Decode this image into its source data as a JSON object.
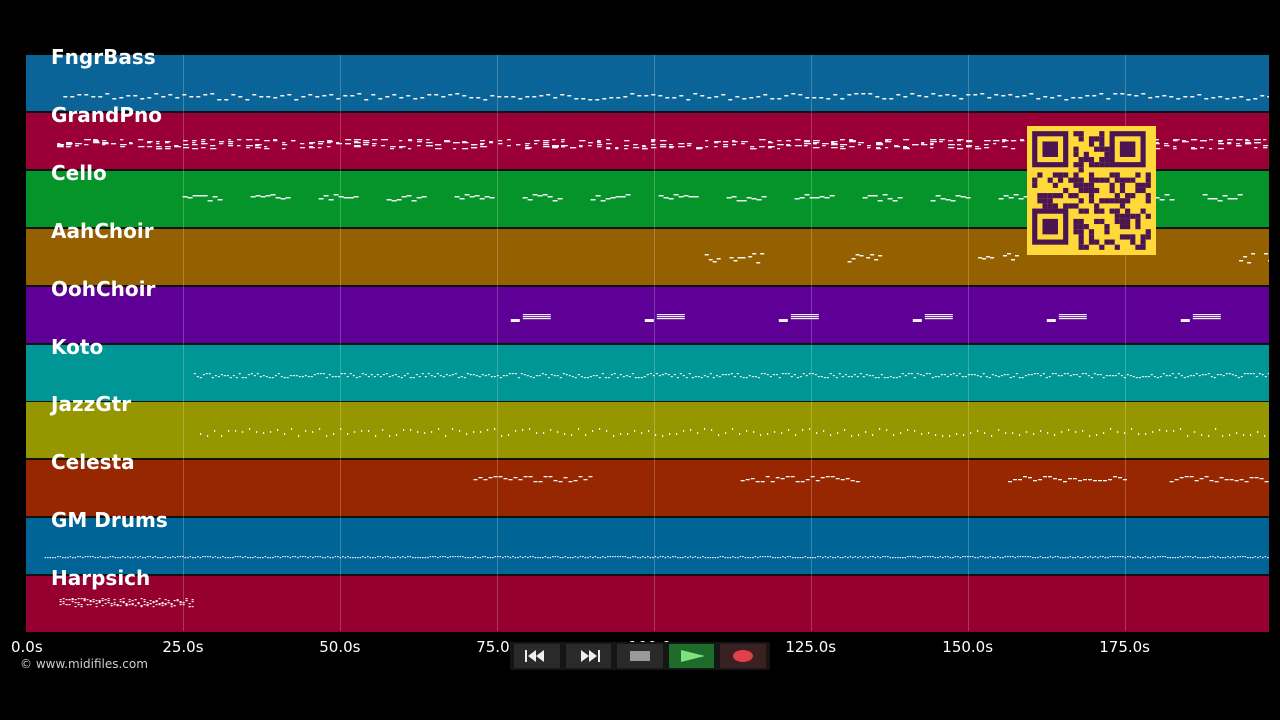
{
  "tracks": [
    {
      "name": "FngrBass",
      "color": "#0a6497",
      "pattern": "wave",
      "start": 0.03,
      "end": 1.0
    },
    {
      "name": "GrandPno",
      "color": "#9a0035",
      "pattern": "chords",
      "start": 0.025,
      "end": 1.0
    },
    {
      "name": "Cello",
      "color": "#05942a",
      "pattern": "phrases",
      "start": 0.126,
      "end": 1.0
    },
    {
      "name": "AahChoir",
      "color": "#956000",
      "pattern": "sparse",
      "start": 0.55,
      "end": 1.0
    },
    {
      "name": "OohChoir",
      "color": "#5e0096",
      "pattern": "blocks",
      "start": 0.39,
      "end": 1.0
    },
    {
      "name": "Koto",
      "color": "#009696",
      "pattern": "dense",
      "start": 0.135,
      "end": 1.0
    },
    {
      "name": "JazzGtr",
      "color": "#969600",
      "pattern": "dots",
      "start": 0.14,
      "end": 1.0
    },
    {
      "name": "Celesta",
      "color": "#962700",
      "pattern": "runs",
      "start": 0.36,
      "end": 1.0
    },
    {
      "name": "GM Drums",
      "color": "#006496",
      "pattern": "drums",
      "start": 0.015,
      "end": 1.0
    },
    {
      "name": "Harpsich",
      "color": "#960030",
      "pattern": "intro",
      "start": 0.027,
      "end": 0.135
    }
  ],
  "axis": {
    "ticks": [
      "0.0s",
      "25.0s",
      "50.0s",
      "75.0s",
      "100.0s",
      "125.0s",
      "150.0s",
      "175.0s"
    ],
    "tick_seconds": [
      0,
      25,
      50,
      75,
      100,
      125,
      150,
      175
    ],
    "max_seconds": 198
  },
  "copyright": "© www.midifiles.com",
  "controls": {
    "rewind": "rewind-icon",
    "fast_forward": "fast-forward-icon",
    "stop": "stop-icon",
    "play": "play-icon",
    "record": "record-icon"
  },
  "qr": {
    "color": "#4a1550",
    "background": "#ffd93a"
  }
}
